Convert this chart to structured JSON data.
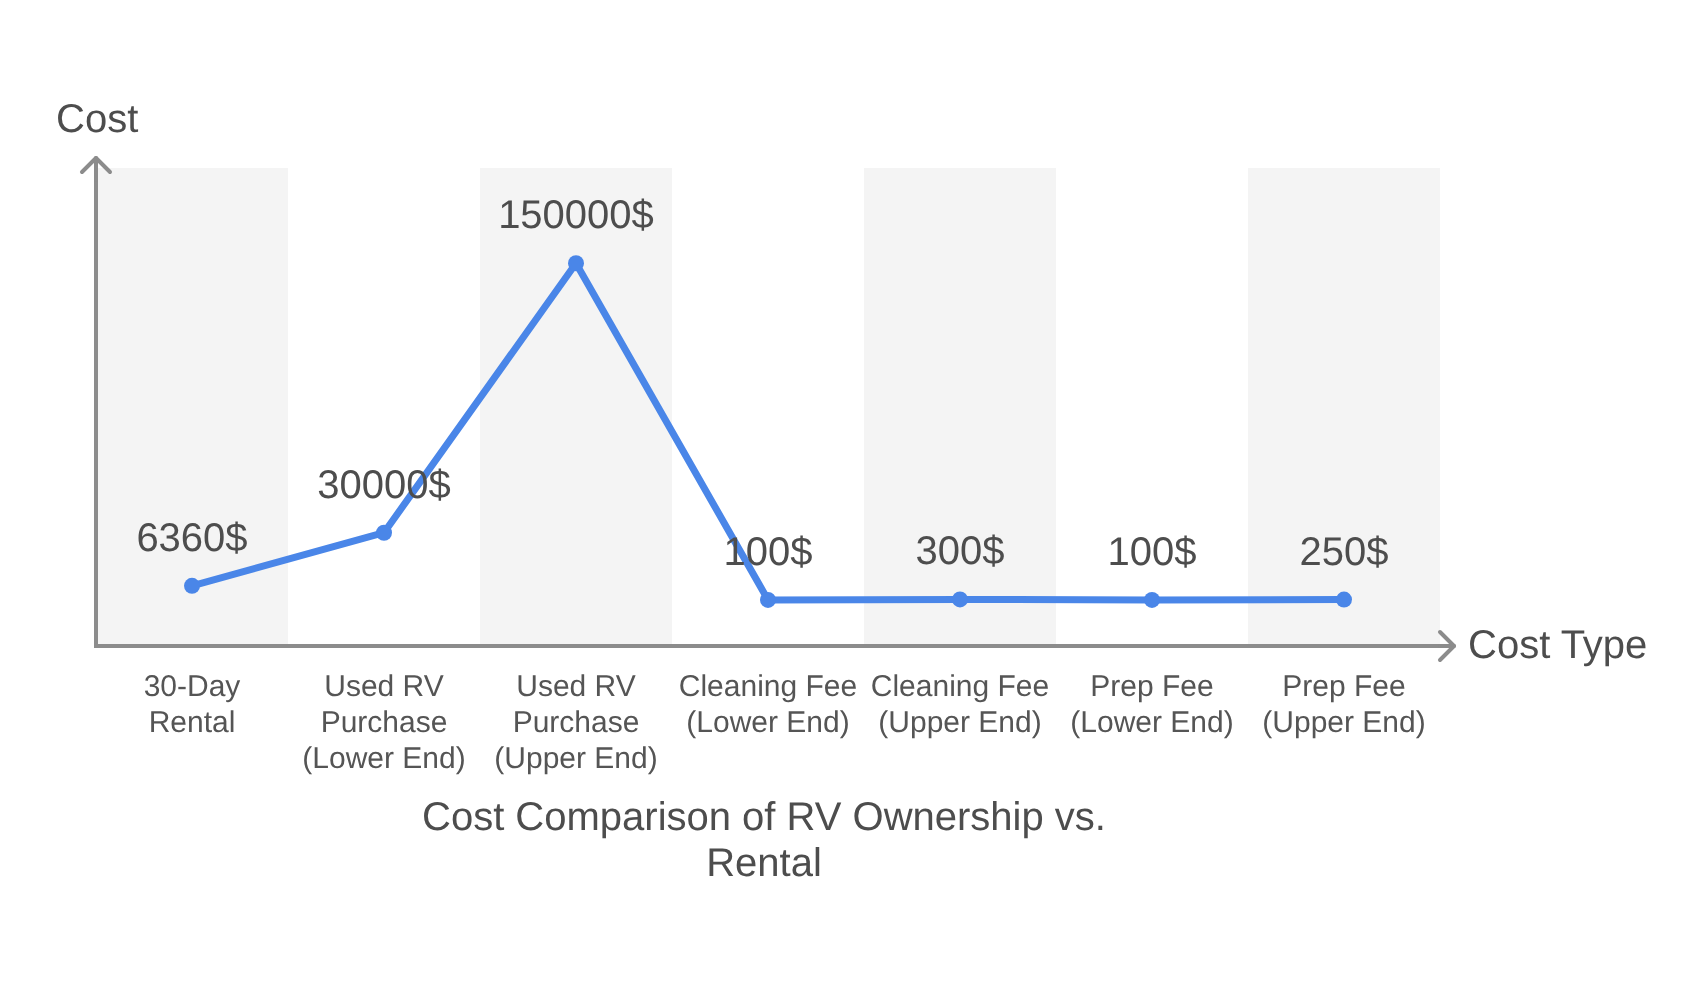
{
  "chart_data": {
    "type": "line",
    "title": "Cost Comparison of RV Ownership vs. Rental",
    "xlabel": "Cost Type",
    "ylabel": "Cost",
    "categories": [
      "30-Day Rental",
      "Used RV Purchase (Lower End)",
      "Used RV Purchase (Upper End)",
      "Cleaning Fee (Lower End)",
      "Cleaning Fee (Upper End)",
      "Prep Fee (Lower End)",
      "Prep Fee (Upper End)"
    ],
    "values": [
      6360,
      30000,
      150000,
      100,
      300,
      100,
      250
    ],
    "color": "#4a86e8",
    "value_labels": [
      "6360$",
      "30000$",
      "150000$",
      "100$",
      "300$",
      "100$",
      "250$"
    ],
    "marker": "circle",
    "line_style": "solid",
    "tick_labels": "x"
  }
}
